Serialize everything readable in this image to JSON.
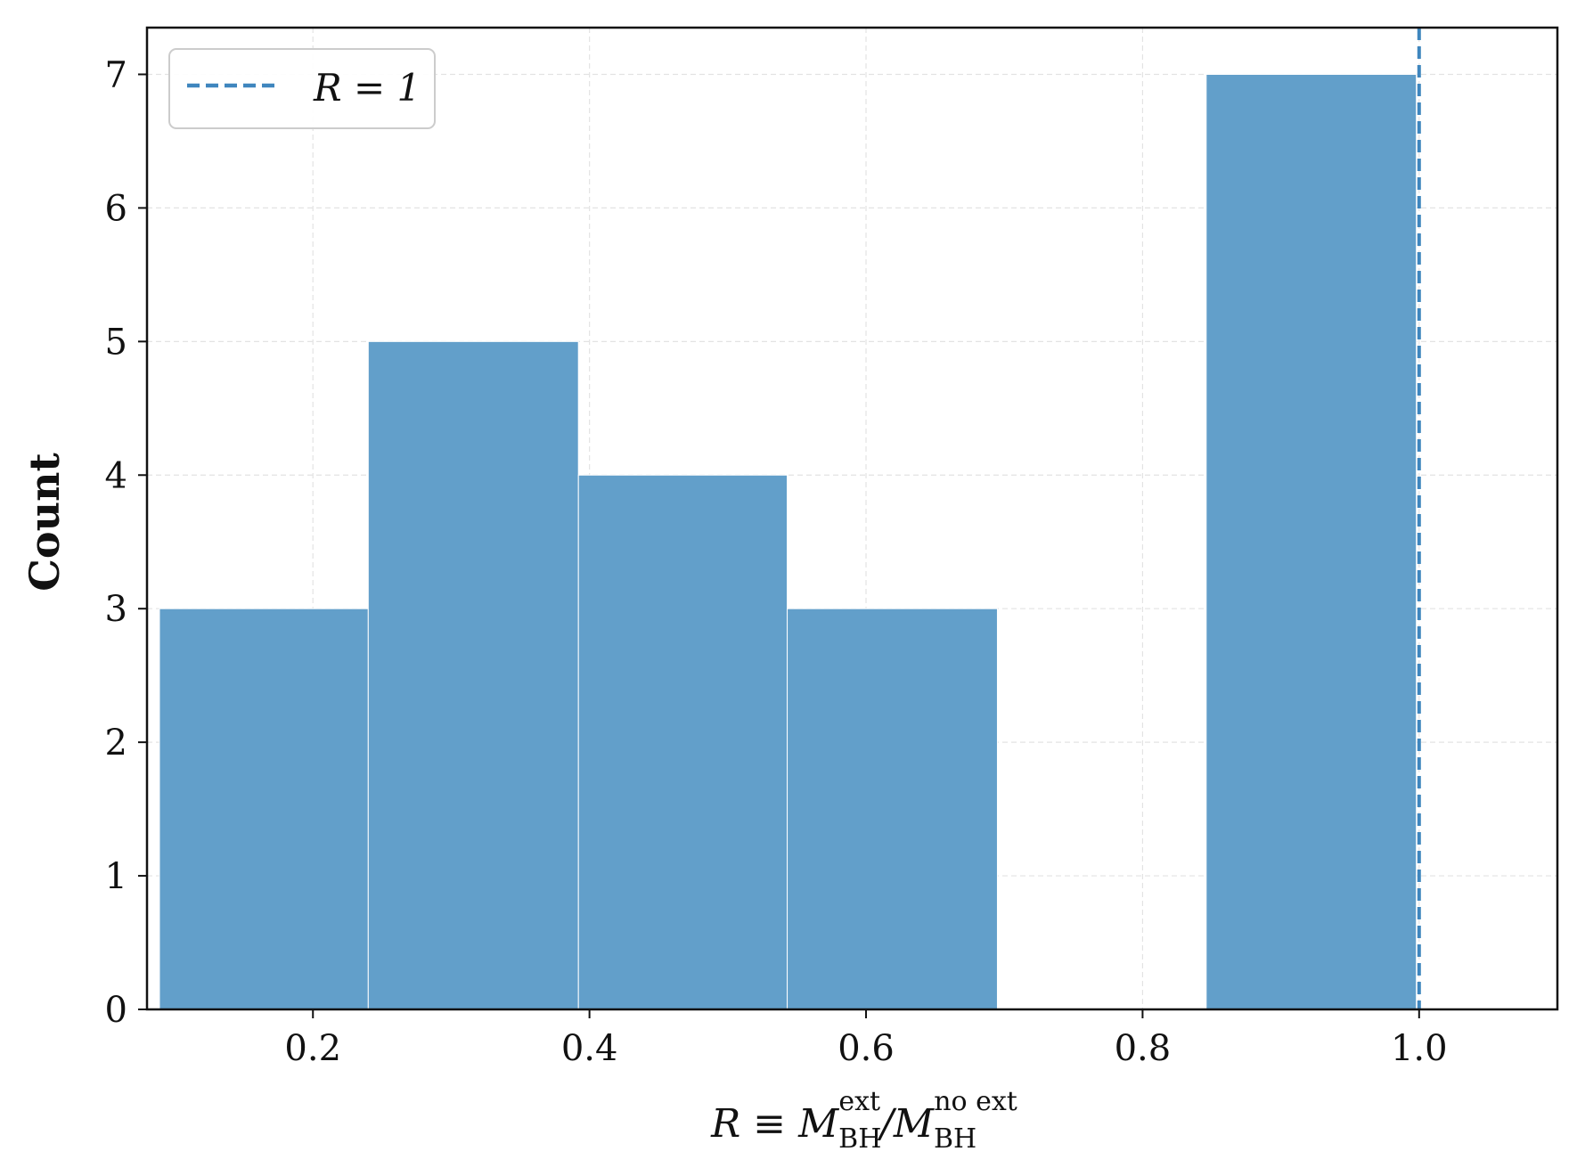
{
  "chart_data": {
    "type": "bar",
    "subtype": "histogram",
    "bins": [
      {
        "x0": 0.089,
        "x1": 0.24,
        "count": 3
      },
      {
        "x0": 0.24,
        "x1": 0.392,
        "count": 5
      },
      {
        "x0": 0.392,
        "x1": 0.543,
        "count": 4
      },
      {
        "x0": 0.543,
        "x1": 0.695,
        "count": 3
      },
      {
        "x0": 0.695,
        "x1": 0.846,
        "count": 0
      },
      {
        "x0": 0.846,
        "x1": 0.998,
        "count": 7
      }
    ],
    "title": "",
    "ylabel": "Count",
    "xlabel": {
      "main": "R ≡ M",
      "sub1": "BH",
      "sup1": "ext",
      "slash": "/M",
      "sub2": "BH",
      "sup2": "no ext"
    },
    "xlim": [
      0.08,
      1.1
    ],
    "ylim": [
      0,
      7.35
    ],
    "xticks": [
      0.2,
      0.4,
      0.6,
      0.8,
      1.0
    ],
    "xtick_labels": [
      "0.2",
      "0.4",
      "0.6",
      "0.8",
      "1.0"
    ],
    "yticks": [
      0,
      1,
      2,
      3,
      4,
      5,
      6,
      7
    ],
    "ytick_labels": [
      "0",
      "1",
      "2",
      "3",
      "4",
      "5",
      "6",
      "7"
    ],
    "grid": true,
    "reference_line": {
      "x": 1.0,
      "style": "dashed",
      "label": "R = 1"
    },
    "legend": {
      "placement": "top-left",
      "entries": [
        "R = 1"
      ]
    },
    "colors": {
      "bar": "#629fca",
      "line": "#3f86be",
      "grid": "#e3e3e3",
      "axis": "#111111"
    }
  }
}
